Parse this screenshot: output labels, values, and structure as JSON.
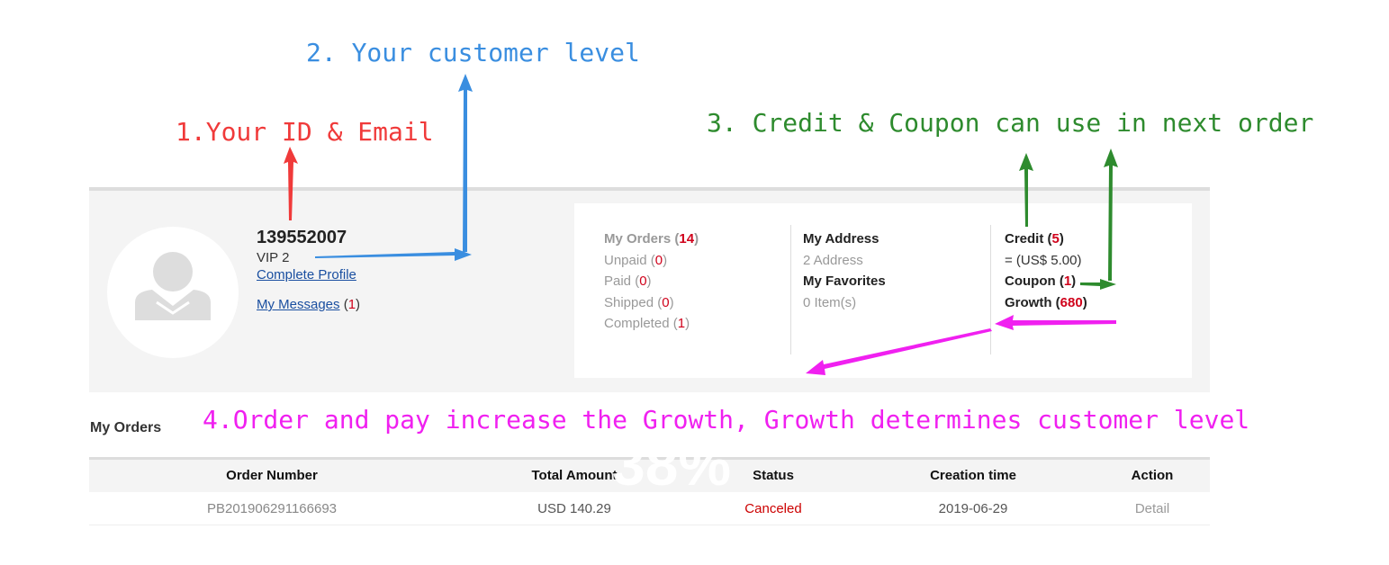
{
  "annotations": {
    "a1": "1.Your ID & Email",
    "a2": "2. Your customer level",
    "a3": "3. Credit & Coupon can use in next order",
    "a4": "4.Order and pay increase the Growth, Growth determines customer level"
  },
  "colors": {
    "a1": "#f03a3a",
    "a2": "#3a8ee0",
    "a3": "#2e8b2e",
    "a4": "#f020f0",
    "accent": "#d0021b"
  },
  "profile": {
    "id": "139552007",
    "level": "VIP 2",
    "complete_profile": "Complete Profile",
    "messages_label": "My Messages",
    "messages_count": "1"
  },
  "orders": {
    "title": "My Orders",
    "count": "14",
    "items": [
      {
        "label": "Unpaid",
        "count": "0"
      },
      {
        "label": "Paid",
        "count": "0"
      },
      {
        "label": "Shipped",
        "count": "0"
      },
      {
        "label": "Completed",
        "count": "1"
      }
    ]
  },
  "address": {
    "title": "My Address",
    "value": "2 Address",
    "fav_title": "My Favorites",
    "fav_value": "0 Item(s)"
  },
  "account": {
    "credit_label": "Credit",
    "credit": "5",
    "credit_value": "= (US$ 5.00)",
    "coupon_label": "Coupon",
    "coupon": "1",
    "growth_label": "Growth",
    "growth": "680"
  },
  "table": {
    "title": "My Orders",
    "headers": [
      "Order Number",
      "Total Amount",
      "Status",
      "Creation time",
      "Action"
    ],
    "rows": [
      [
        "PB201906291166693",
        "USD 140.29",
        "Canceled",
        "2019-06-29",
        "Detail"
      ]
    ]
  },
  "watermark": "38%"
}
